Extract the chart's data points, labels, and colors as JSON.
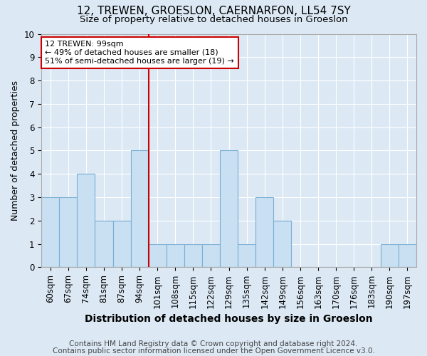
{
  "title1": "12, TREWEN, GROESLON, CAERNARFON, LL54 7SY",
  "title2": "Size of property relative to detached houses in Groeslon",
  "xlabel": "Distribution of detached houses by size in Groeslon",
  "ylabel": "Number of detached properties",
  "footnote1": "Contains HM Land Registry data © Crown copyright and database right 2024.",
  "footnote2": "Contains public sector information licensed under the Open Government Licence v3.0.",
  "bins": [
    "60sqm",
    "67sqm",
    "74sqm",
    "81sqm",
    "87sqm",
    "94sqm",
    "101sqm",
    "108sqm",
    "115sqm",
    "122sqm",
    "129sqm",
    "135sqm",
    "142sqm",
    "149sqm",
    "156sqm",
    "163sqm",
    "170sqm",
    "176sqm",
    "183sqm",
    "190sqm",
    "197sqm"
  ],
  "values": [
    3,
    3,
    4,
    2,
    2,
    5,
    1,
    1,
    1,
    1,
    5,
    1,
    3,
    2,
    0,
    0,
    0,
    0,
    0,
    1,
    1
  ],
  "bar_color": "#c9dff2",
  "bar_edge_color": "#7aafd4",
  "vline_x_index": 5.5,
  "vline_color": "#cc0000",
  "annotation_line1": "12 TREWEN: 99sqm",
  "annotation_line2": "← 49% of detached houses are smaller (18)",
  "annotation_line3": "51% of semi-detached houses are larger (19) →",
  "annotation_box_color": "#ffffff",
  "annotation_box_edge_color": "#cc0000",
  "ylim": [
    0,
    10
  ],
  "yticks": [
    0,
    1,
    2,
    3,
    4,
    5,
    6,
    7,
    8,
    9,
    10
  ],
  "bg_color": "#dce9f5",
  "plot_bg_color": "#dce9f5",
  "grid_color": "#ffffff",
  "title1_fontsize": 11,
  "title2_fontsize": 9.5,
  "xlabel_fontsize": 10,
  "ylabel_fontsize": 9,
  "tick_fontsize": 8.5,
  "footnote_fontsize": 7.5
}
